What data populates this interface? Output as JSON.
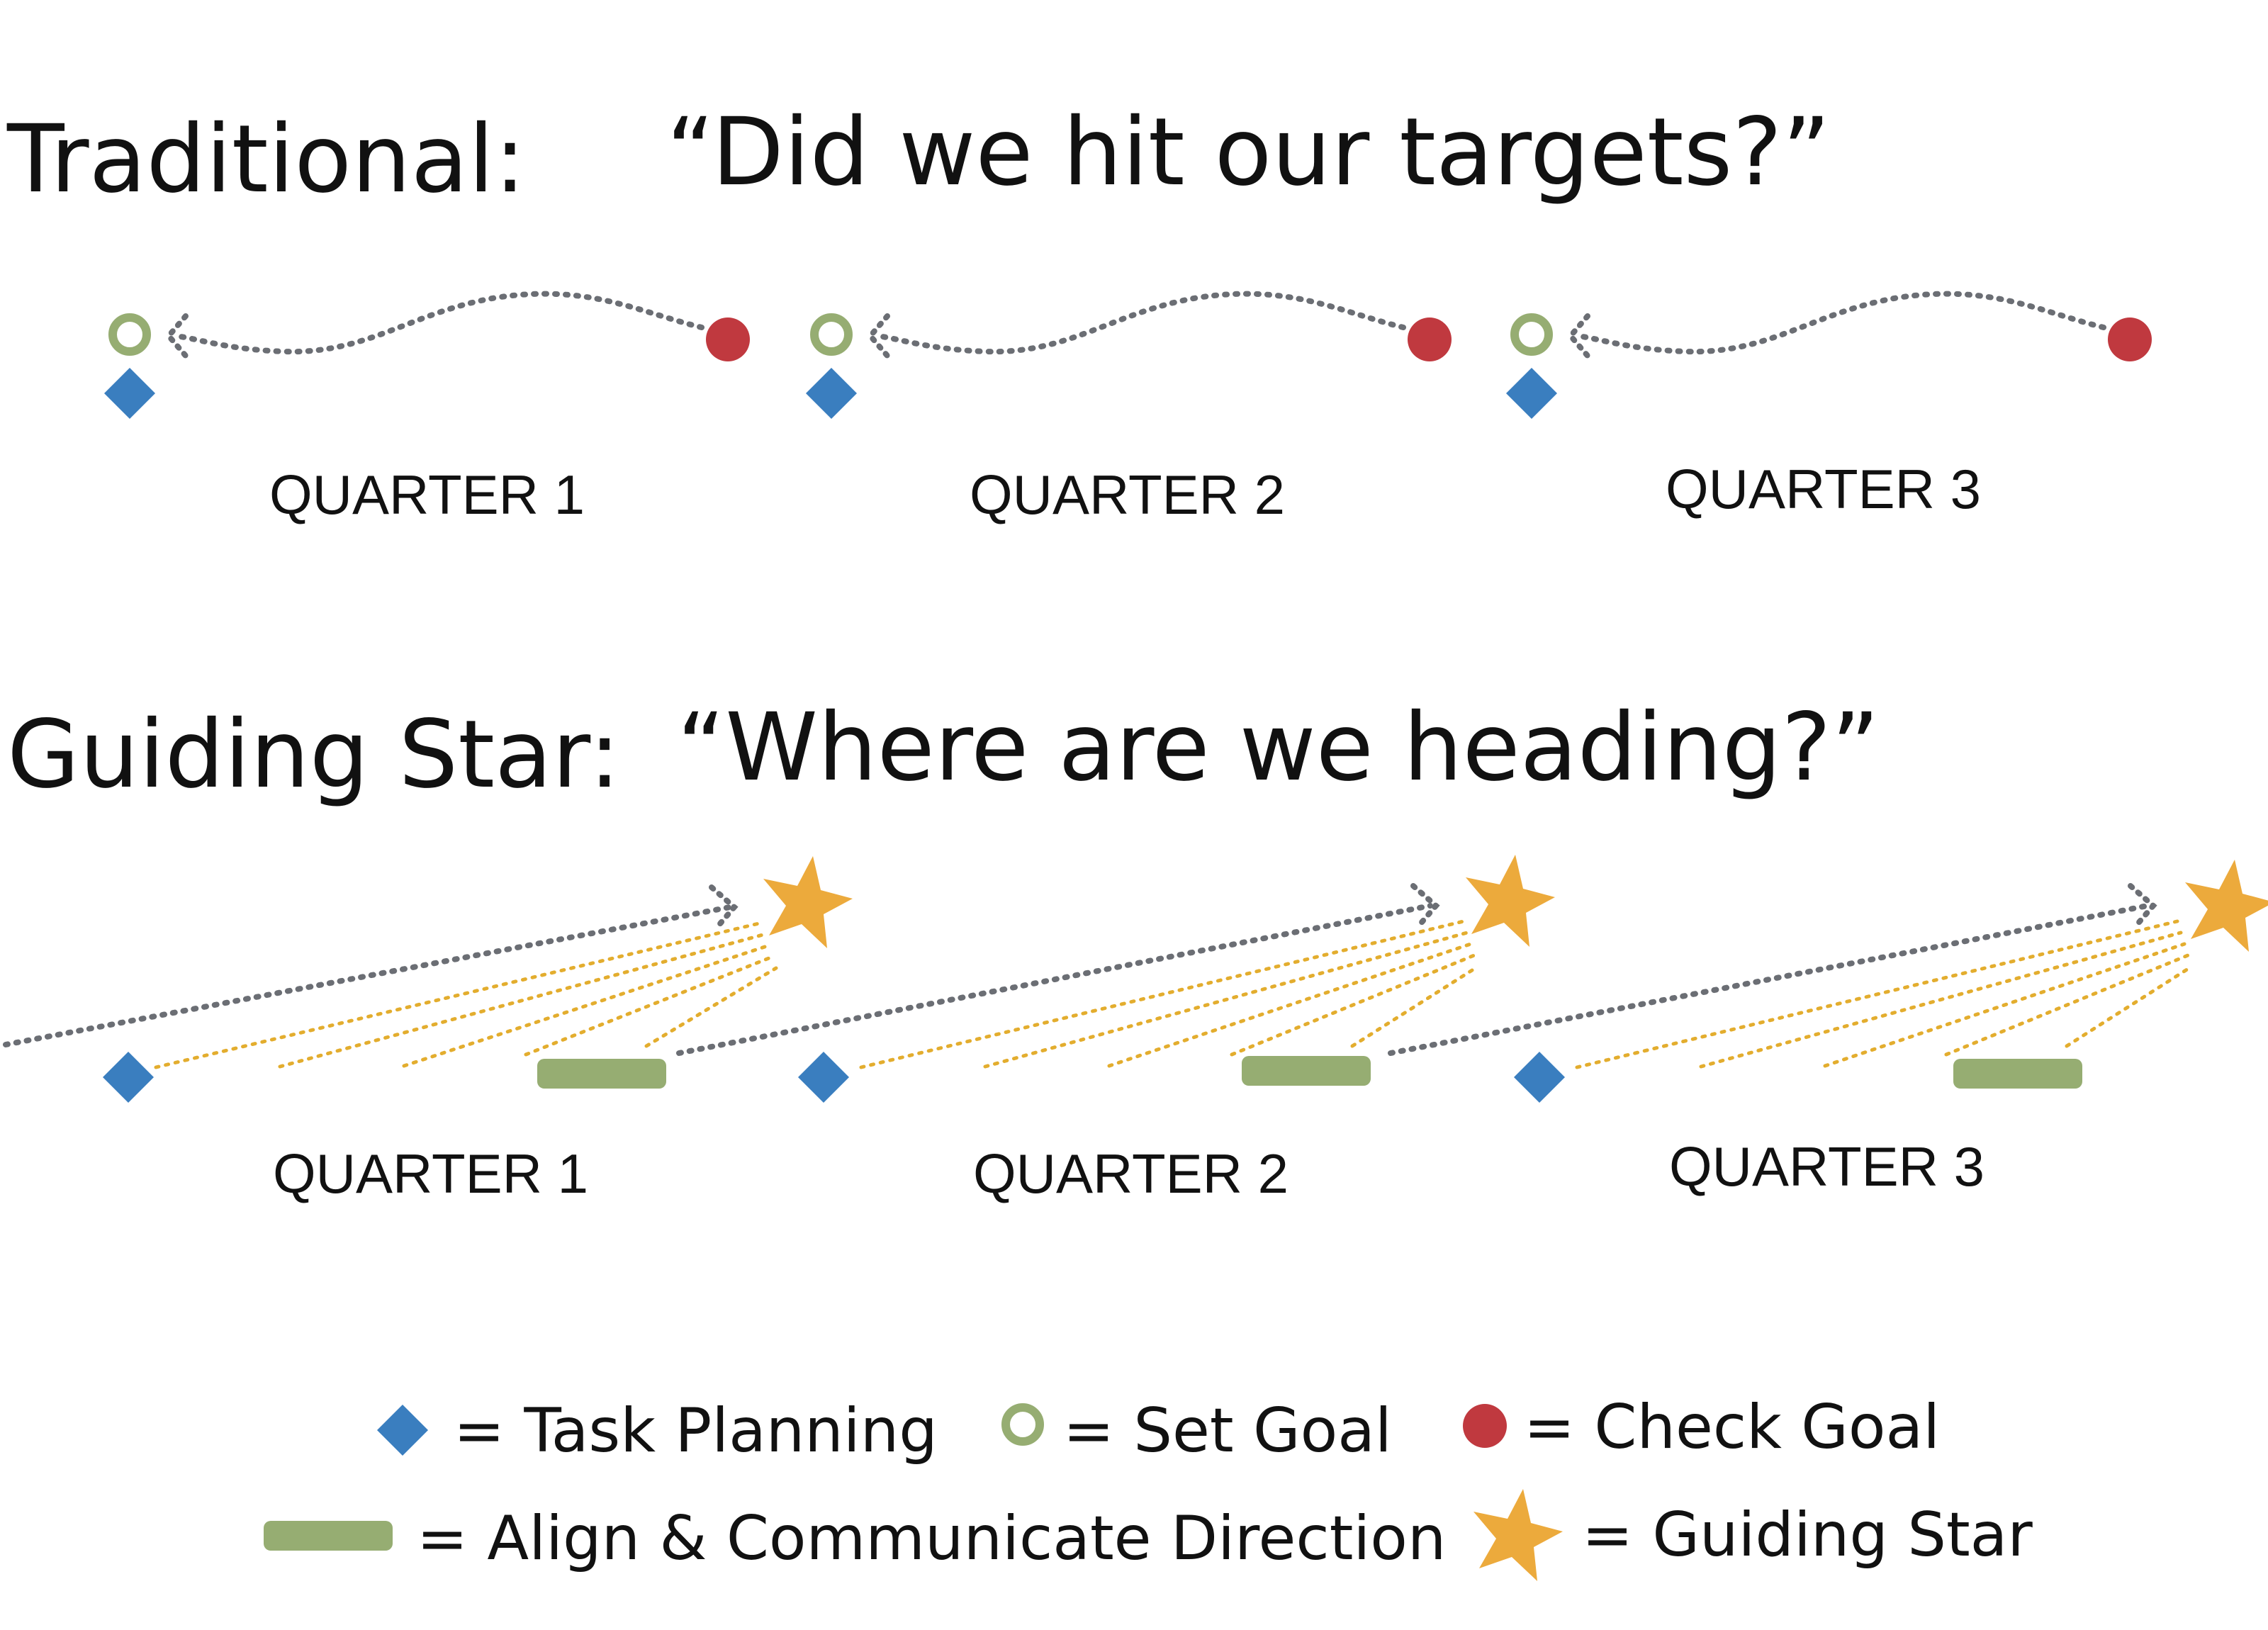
{
  "colors": {
    "task_planning": "#3a7ebf",
    "set_goal": "#96ad72",
    "check_goal": "#c0393f",
    "align": "#96ad72",
    "guiding_star": "#ecaa3c",
    "dotted_path": "#6b6e74",
    "star_rays": "#e3ad2e",
    "text": "#111111"
  },
  "traditional": {
    "title": "Traditional:",
    "question": "“Did we hit our targets?”",
    "quarters": [
      {
        "label": "QUARTER 1"
      },
      {
        "label": "QUARTER 2"
      },
      {
        "label": "QUARTER 3"
      }
    ]
  },
  "guiding_star": {
    "title": "Guiding Star:",
    "question": "“Where are we heading?”",
    "quarters": [
      {
        "label": "QUARTER 1"
      },
      {
        "label": "QUARTER 2"
      },
      {
        "label": "QUARTER 3"
      }
    ]
  },
  "legend": {
    "task_planning": "= Task Planning",
    "set_goal": "= Set Goal",
    "check_goal": "= Check Goal",
    "align": "= Align & Communicate Direction",
    "guiding_star": "= Guiding Star"
  },
  "icons": {
    "task_planning": "blue-diamond-icon",
    "set_goal": "green-ring-icon",
    "check_goal": "red-dot-icon",
    "align": "green-bar-icon",
    "guiding_star": "gold-star-icon"
  }
}
